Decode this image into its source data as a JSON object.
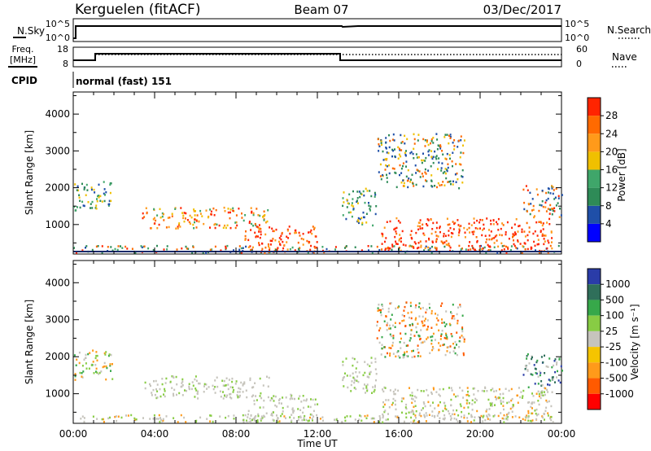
{
  "header": {
    "station": "Kerguelen (fitACF)",
    "beam": "Beam 07",
    "date": "03/Dec/2017"
  },
  "top_panels": {
    "nsky": {
      "label": "N.Sky",
      "ticks": [
        "10^5",
        "10^0"
      ],
      "right_ticks": [
        "10^5",
        "10^0"
      ],
      "right_label": "N.Search"
    },
    "freq": {
      "label_line1": "Freq.",
      "label_line2": "[MHz]",
      "ticks": [
        "18",
        "8"
      ],
      "right_ticks": [
        "60",
        "0"
      ],
      "right_label": "Nave"
    },
    "cpid": {
      "label": "CPID",
      "value": "normal (fast) 151"
    }
  },
  "chart_data": [
    {
      "type": "heatmap",
      "name": "power",
      "ylabel": "Slant Range [km]",
      "y_ticks": [
        1000,
        2000,
        3000,
        4000
      ],
      "ylim": [
        200,
        4600
      ],
      "colorbar": {
        "label": "Power [dB]",
        "ticks": [
          "4",
          "8",
          "12",
          "16",
          "20",
          "24",
          "28"
        ],
        "colors": [
          "#0000ff",
          "#1f4fa8",
          "#2e8b57",
          "#3fa66a",
          "#f0c000",
          "#ff9a1a",
          "#ff6a00",
          "#ff2400"
        ]
      }
    },
    {
      "type": "heatmap",
      "name": "velocity",
      "ylabel": "Slant Range [km]",
      "y_ticks": [
        1000,
        2000,
        3000,
        4000
      ],
      "ylim": [
        200,
        4600
      ],
      "colorbar": {
        "label": "Velocity [m s⁻¹]",
        "ticks": [
          "1000",
          "500",
          "100",
          "25",
          "-25",
          "-100",
          "-500",
          "-1000"
        ],
        "colors": [
          "#2a3ca8",
          "#2f6f5a",
          "#37a84a",
          "#88cc44",
          "#c6c4bc",
          "#f5c400",
          "#ff9a1a",
          "#ff5a00",
          "#ff0000"
        ]
      }
    }
  ],
  "x_axis": {
    "ticks": [
      "00:00",
      "04:00",
      "08:00",
      "12:00",
      "16:00",
      "20:00",
      "00:00"
    ],
    "label": "Time UT"
  }
}
